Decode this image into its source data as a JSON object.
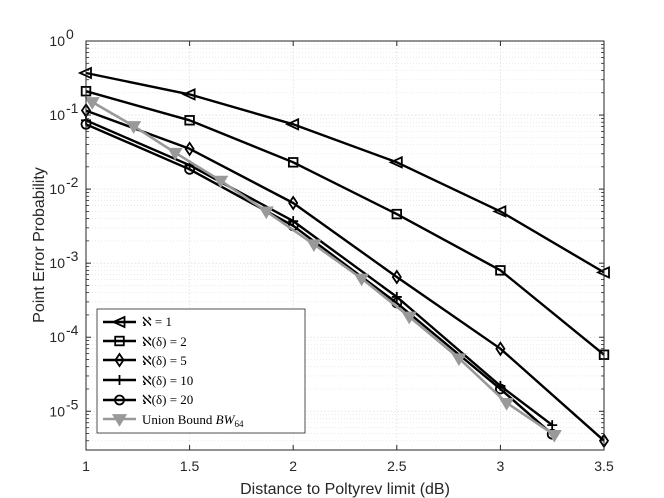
{
  "chart_data": {
    "type": "line",
    "title": "",
    "xlabel": "Distance to Poltyrev limit (dB)",
    "ylabel": "Point Error Probability",
    "xlim": [
      1,
      3.5
    ],
    "ylim": [
      3e-06,
      1
    ],
    "yscale": "log",
    "grid": true,
    "legend_position": "bottom-left",
    "x_ticks": [
      1,
      1.5,
      2,
      2.5,
      3,
      3.5
    ],
    "x_tick_labels": [
      "1",
      "1.5",
      "2",
      "2.5",
      "3",
      "3.5"
    ],
    "y_ticks": [
      1e-05,
      0.0001,
      0.001,
      0.01,
      0.1,
      1
    ],
    "y_tick_base": [
      "10",
      "10",
      "10",
      "10",
      "10",
      "10"
    ],
    "y_tick_exp": [
      "-5",
      "-4",
      "-3",
      "-2",
      "-1",
      "0"
    ],
    "series": [
      {
        "name": "ℵ = 1",
        "marker": "triangle-left",
        "color": "#000000",
        "x": [
          1,
          1.5,
          2,
          2.5,
          3,
          3.5
        ],
        "y": [
          0.37,
          0.19,
          0.075,
          0.023,
          0.005,
          0.00075
        ]
      },
      {
        "name": "ℵ(δ) = 2",
        "marker": "square",
        "color": "#000000",
        "x": [
          1,
          1.5,
          2,
          2.5,
          3,
          3.5
        ],
        "y": [
          0.21,
          0.085,
          0.023,
          0.0046,
          0.0008,
          5.8e-05
        ]
      },
      {
        "name": "ℵ(δ) = 5",
        "marker": "diamond",
        "color": "#000000",
        "x": [
          1,
          1.5,
          2,
          2.5,
          3,
          3.5
        ],
        "y": [
          0.115,
          0.035,
          0.0065,
          0.00065,
          7e-05,
          4e-06
        ]
      },
      {
        "name": "ℵ(δ) = 10",
        "marker": "plus",
        "color": "#000000",
        "x": [
          1,
          1.5,
          2,
          2.5,
          3,
          3.25
        ],
        "y": [
          0.085,
          0.021,
          0.0037,
          0.00035,
          2.2e-05,
          6.5e-06
        ]
      },
      {
        "name": "ℵ(δ) = 20",
        "marker": "circle",
        "color": "#000000",
        "x": [
          1,
          1.5,
          2,
          2.5,
          3,
          3.25
        ],
        "y": [
          0.075,
          0.0185,
          0.0032,
          0.00029,
          2e-05,
          4.9e-06
        ]
      },
      {
        "name": "Union Bound BW64",
        "marker": "triangle-down",
        "color": "#999999",
        "x": [
          1.03,
          1.23,
          1.43,
          1.65,
          1.87,
          2.1,
          2.33,
          2.56,
          2.8,
          3.03,
          3.26
        ],
        "y": [
          0.15,
          0.071,
          0.031,
          0.013,
          0.005,
          0.0018,
          0.00062,
          0.00019,
          5.2e-05,
          1.3e-05,
          4.8e-06
        ]
      }
    ],
    "legend_labels": {
      "s0_prefix": "ℵ = 1",
      "s1_prefix": "ℵ(δ) = 2",
      "s2_prefix": "ℵ(δ) = 5",
      "s3_prefix": "ℵ(δ) = 10",
      "s4_prefix": "ℵ(δ) = 20",
      "s5_prefix": "Union Bound ",
      "s5_math": "BW",
      "s5_sub": "64"
    }
  }
}
